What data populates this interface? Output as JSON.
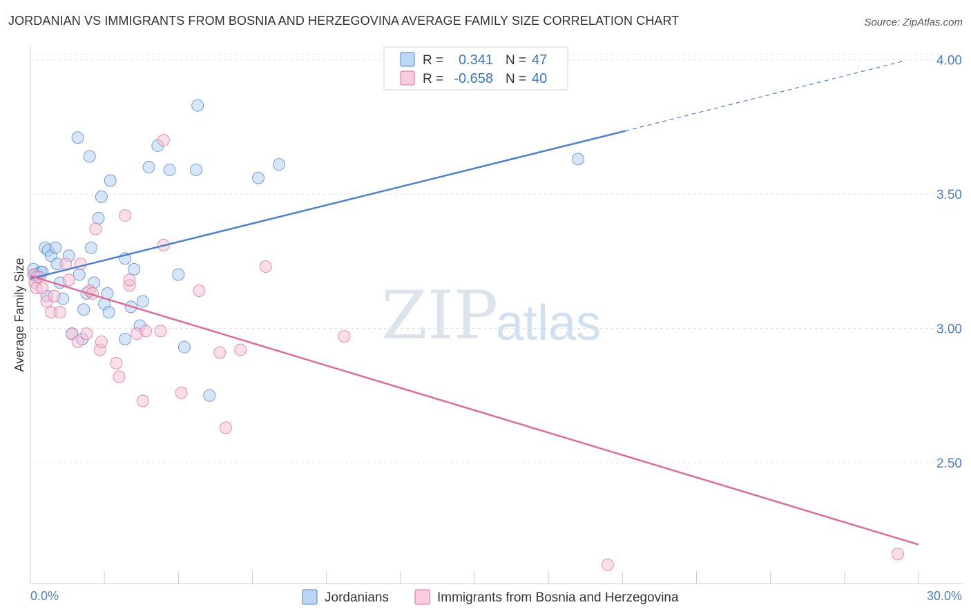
{
  "title": "JORDANIAN VS IMMIGRANTS FROM BOSNIA AND HERZEGOVINA AVERAGE FAMILY SIZE CORRELATION CHART",
  "source": "Source: ZipAtlas.com",
  "watermark": {
    "zip": "ZIP",
    "atlas": "atlas"
  },
  "colors": {
    "blue": "#4a7fd4",
    "blue_fill": "#aecdf0",
    "pink": "#e06a98",
    "pink_fill": "#f6bfd2"
  },
  "legend": {
    "r_label": "R =",
    "n_label": "N =",
    "rows": [
      {
        "r": "0.341",
        "n": "47"
      },
      {
        "r": "-0.658",
        "n": "40"
      }
    ]
  },
  "chart_data": {
    "type": "scatter",
    "title": "JORDANIAN VS IMMIGRANTS FROM BOSNIA AND HERZEGOVINA AVERAGE FAMILY SIZE CORRELATION CHART",
    "xlabel": "",
    "ylabel": "Average Family Size",
    "xlim": [
      0,
      30
    ],
    "ylim": [
      2.05,
      4.05
    ],
    "x_tick_labels": [
      "0.0%",
      "30.0%"
    ],
    "y_ticks": [
      2.5,
      3.0,
      3.5,
      4.0
    ],
    "y_tick_labels": [
      "2.50",
      "3.00",
      "3.50",
      "4.00"
    ],
    "series": [
      {
        "name": "Jordanians",
        "color": "blue",
        "points": [
          [
            0.1,
            3.22
          ],
          [
            0.25,
            3.2
          ],
          [
            0.35,
            3.21
          ],
          [
            0.5,
            3.3
          ],
          [
            0.6,
            3.29
          ],
          [
            0.7,
            3.27
          ],
          [
            0.85,
            3.3
          ],
          [
            0.9,
            3.24
          ],
          [
            1.0,
            3.17
          ],
          [
            1.1,
            3.11
          ],
          [
            1.3,
            3.27
          ],
          [
            1.4,
            2.98
          ],
          [
            1.6,
            3.71
          ],
          [
            1.65,
            3.2
          ],
          [
            1.75,
            2.96
          ],
          [
            1.8,
            3.07
          ],
          [
            1.9,
            3.13
          ],
          [
            2.0,
            3.64
          ],
          [
            2.05,
            3.3
          ],
          [
            2.15,
            3.17
          ],
          [
            2.3,
            3.41
          ],
          [
            2.4,
            3.49
          ],
          [
            2.5,
            3.09
          ],
          [
            2.6,
            3.13
          ],
          [
            2.65,
            3.06
          ],
          [
            2.7,
            3.55
          ],
          [
            3.2,
            2.96
          ],
          [
            3.2,
            3.26
          ],
          [
            3.4,
            3.08
          ],
          [
            3.5,
            3.22
          ],
          [
            3.7,
            3.01
          ],
          [
            3.8,
            3.1
          ],
          [
            4.0,
            3.6
          ],
          [
            4.3,
            3.68
          ],
          [
            4.7,
            3.59
          ],
          [
            5.0,
            3.2
          ],
          [
            5.2,
            2.93
          ],
          [
            5.6,
            3.59
          ],
          [
            5.65,
            3.83
          ],
          [
            6.05,
            2.75
          ],
          [
            7.7,
            3.56
          ],
          [
            8.4,
            3.61
          ],
          [
            18.5,
            3.63
          ],
          [
            0.55,
            3.12
          ],
          [
            0.15,
            3.2
          ],
          [
            0.2,
            3.19
          ],
          [
            0.4,
            3.21
          ]
        ]
      },
      {
        "name": "Immigrants from Bosnia and Herzegovina",
        "color": "pink",
        "points": [
          [
            0.1,
            3.2
          ],
          [
            0.15,
            3.17
          ],
          [
            0.2,
            3.15
          ],
          [
            0.3,
            3.19
          ],
          [
            0.4,
            3.15
          ],
          [
            0.55,
            3.1
          ],
          [
            0.7,
            3.06
          ],
          [
            0.8,
            3.12
          ],
          [
            1.0,
            3.06
          ],
          [
            1.2,
            3.24
          ],
          [
            1.3,
            3.18
          ],
          [
            1.4,
            2.98
          ],
          [
            1.6,
            2.95
          ],
          [
            1.7,
            3.24
          ],
          [
            1.9,
            2.98
          ],
          [
            2.0,
            3.14
          ],
          [
            2.1,
            3.13
          ],
          [
            2.2,
            3.37
          ],
          [
            2.35,
            2.92
          ],
          [
            2.4,
            2.95
          ],
          [
            2.9,
            2.87
          ],
          [
            3.0,
            2.82
          ],
          [
            3.2,
            3.42
          ],
          [
            3.35,
            3.16
          ],
          [
            3.35,
            3.18
          ],
          [
            3.6,
            2.98
          ],
          [
            3.8,
            2.73
          ],
          [
            3.9,
            2.99
          ],
          [
            4.4,
            2.99
          ],
          [
            4.5,
            3.7
          ],
          [
            4.5,
            3.31
          ],
          [
            5.1,
            2.76
          ],
          [
            5.7,
            3.14
          ],
          [
            6.4,
            2.91
          ],
          [
            6.6,
            2.63
          ],
          [
            7.1,
            2.92
          ],
          [
            7.95,
            3.23
          ],
          [
            10.6,
            2.97
          ],
          [
            19.5,
            2.12
          ],
          [
            29.3,
            2.16
          ]
        ]
      }
    ],
    "trend_lines": [
      {
        "series": "Jordanians",
        "x_start": 0,
        "y_start": 3.185,
        "x_end": 20.1,
        "y_end": 3.735,
        "dashed_from_x": 20.1,
        "dashed_to_x": 29.5,
        "dashed_to_y": 3.995
      },
      {
        "series": "Immigrants from Bosnia and Herzegovina",
        "x_start": 0,
        "y_start": 3.195,
        "x_end": 30,
        "y_end": 2.195
      }
    ],
    "grid": "horizontal dashed",
    "legend_position": "top-center"
  }
}
